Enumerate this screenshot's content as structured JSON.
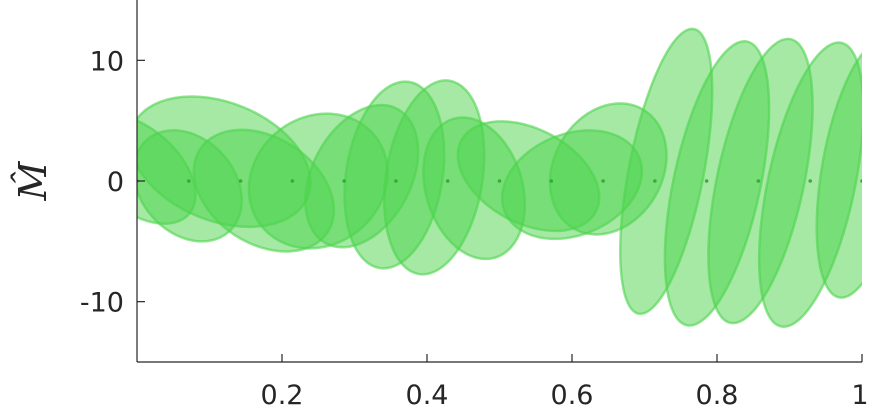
{
  "chart_data": {
    "type": "scatter",
    "title": "",
    "xlabel": "",
    "ylabel": "M̂",
    "xlim": [
      0,
      1
    ],
    "ylim": [
      -15,
      15
    ],
    "xticks": [
      0.2,
      0.4,
      0.6,
      0.8,
      1
    ],
    "xtick_labels": [
      "0.2",
      "0.4",
      "0.6",
      "0.8",
      "1"
    ],
    "yticks": [
      -10,
      0,
      10
    ],
    "ytick_labels": [
      "-10",
      "0",
      "10"
    ],
    "grid": false,
    "color": "#4cd44c",
    "points": [
      {
        "x": 0.0
      },
      {
        "x": 0.0714
      },
      {
        "x": 0.1429
      },
      {
        "x": 0.2143
      },
      {
        "x": 0.2857
      },
      {
        "x": 0.3571
      },
      {
        "x": 0.4286
      },
      {
        "x": 0.5
      },
      {
        "x": 0.5714
      },
      {
        "x": 0.6429
      },
      {
        "x": 0.7143
      },
      {
        "x": 0.7857
      },
      {
        "x": 0.8571
      },
      {
        "x": 0.9286
      },
      {
        "x": 1.0
      }
    ],
    "ellipses": [
      {
        "cx": 0.0,
        "cy": 1.0,
        "semi_major": 0.095,
        "semi_minor": 3.4,
        "angle_deg": -41
      },
      {
        "cx": 0.07,
        "cy": -0.4,
        "semi_major": 0.085,
        "semi_minor": 3.9,
        "angle_deg": -48
      },
      {
        "cx": 0.115,
        "cy": 1.6,
        "semi_major": 0.13,
        "semi_minor": 4.9,
        "angle_deg": -22
      },
      {
        "cx": 0.175,
        "cy": -0.8,
        "semi_major": 0.105,
        "semi_minor": 4.4,
        "angle_deg": -33
      },
      {
        "cx": 0.25,
        "cy": 0.0,
        "semi_major": 0.1,
        "semi_minor": 5.3,
        "angle_deg": 38
      },
      {
        "cx": 0.31,
        "cy": 0.4,
        "semi_major": 0.105,
        "semi_minor": 4.1,
        "angle_deg": 62
      },
      {
        "cx": 0.355,
        "cy": 0.5,
        "semi_major": 0.13,
        "semi_minor": 4.0,
        "angle_deg": 81
      },
      {
        "cx": 0.41,
        "cy": 0.3,
        "semi_major": 0.135,
        "semi_minor": 4.0,
        "angle_deg": 81
      },
      {
        "cx": 0.465,
        "cy": -0.6,
        "semi_major": 0.1,
        "semi_minor": 4.0,
        "angle_deg": -73
      },
      {
        "cx": 0.54,
        "cy": 0.4,
        "semi_major": 0.105,
        "semi_minor": 3.9,
        "angle_deg": -28
      },
      {
        "cx": 0.6,
        "cy": -0.3,
        "semi_major": 0.1,
        "semi_minor": 4.2,
        "angle_deg": 22
      },
      {
        "cx": 0.65,
        "cy": 1.0,
        "semi_major": 0.095,
        "semi_minor": 4.5,
        "angle_deg": 60
      },
      {
        "cx": 0.73,
        "cy": 0.8,
        "semi_major": 0.2,
        "semi_minor": 3.1,
        "angle_deg": 79
      },
      {
        "cx": 0.8,
        "cy": -0.2,
        "semi_major": 0.2,
        "semi_minor": 3.6,
        "angle_deg": 78
      },
      {
        "cx": 0.86,
        "cy": 0.0,
        "semi_major": 0.2,
        "semi_minor": 3.6,
        "angle_deg": 78
      },
      {
        "cx": 0.93,
        "cy": -0.3,
        "semi_major": 0.2,
        "semi_minor": 3.6,
        "angle_deg": 78
      },
      {
        "cx": 1.0,
        "cy": 1.0,
        "semi_major": 0.18,
        "semi_minor": 3.3,
        "angle_deg": 80
      }
    ]
  }
}
